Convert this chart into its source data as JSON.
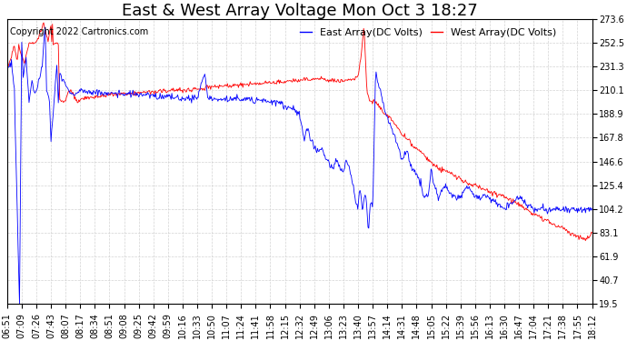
{
  "title": "East & West Array Voltage Mon Oct 3 18:27",
  "copyright": "Copyright 2022 Cartronics.com",
  "legend_east": "East Array(DC Volts)",
  "legend_west": "West Array(DC Volts)",
  "east_color": "blue",
  "west_color": "red",
  "background_color": "#ffffff",
  "grid_color": "#c8c8c8",
  "ylim": [
    19.5,
    273.6
  ],
  "yticks": [
    19.5,
    40.7,
    61.9,
    83.1,
    104.2,
    125.4,
    146.6,
    167.8,
    188.9,
    210.1,
    231.3,
    252.5,
    273.6
  ],
  "xtick_labels": [
    "06:51",
    "07:09",
    "07:26",
    "07:43",
    "08:07",
    "08:17",
    "08:34",
    "08:51",
    "09:08",
    "09:25",
    "09:42",
    "09:59",
    "10:16",
    "10:33",
    "10:50",
    "11:07",
    "11:24",
    "11:41",
    "11:58",
    "12:15",
    "12:32",
    "12:49",
    "13:06",
    "13:23",
    "13:40",
    "13:57",
    "14:14",
    "14:31",
    "14:48",
    "15:05",
    "15:22",
    "15:39",
    "15:56",
    "16:13",
    "16:30",
    "16:47",
    "17:04",
    "17:21",
    "17:38",
    "17:55",
    "18:12"
  ],
  "title_fontsize": 13,
  "label_fontsize": 7,
  "copyright_fontsize": 7,
  "legend_fontsize": 8
}
